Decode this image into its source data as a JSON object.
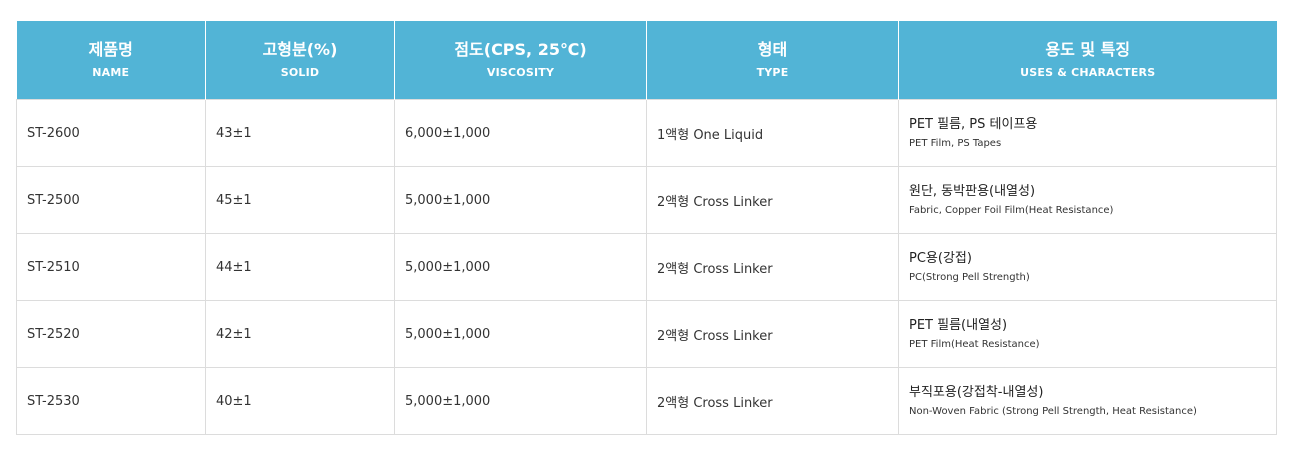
{
  "table": {
    "headers": [
      {
        "ko": "제품명",
        "en": "NAME"
      },
      {
        "ko": "고형분(%)",
        "en": "SOLID"
      },
      {
        "ko": "점도(CPS, 25℃)",
        "en": "VISCOSITY"
      },
      {
        "ko": "형태",
        "en": "TYPE"
      },
      {
        "ko": "용도 및 특징",
        "en": "USES & CHARACTERS"
      }
    ],
    "rows": [
      {
        "name": "ST-2600",
        "solid": "43±1",
        "viscosity": "6,000±1,000",
        "type": "1액형 One Liquid",
        "use_ko": "PET 필름, PS 테이프용",
        "use_en": "PET Film, PS Tapes"
      },
      {
        "name": "ST-2500",
        "solid": "45±1",
        "viscosity": "5,000±1,000",
        "type": "2액형 Cross Linker",
        "use_ko": "원단, 동박판용(내열성)",
        "use_en": "Fabric, Copper Foil Film(Heat Resistance)"
      },
      {
        "name": "ST-2510",
        "solid": "44±1",
        "viscosity": "5,000±1,000",
        "type": "2액형 Cross Linker",
        "use_ko": "PC용(강접)",
        "use_en": "PC(Strong Pell Strength)"
      },
      {
        "name": "ST-2520",
        "solid": "42±1",
        "viscosity": "5,000±1,000",
        "type": "2액형 Cross Linker",
        "use_ko": "PET 필름(내열성)",
        "use_en": "PET Film(Heat Resistance)"
      },
      {
        "name": "ST-2530",
        "solid": "40±1",
        "viscosity": "5,000±1,000",
        "type": "2액형 Cross Linker",
        "use_ko": "부직포용(강접착-내열성)",
        "use_en": "Non-Woven Fabric (Strong Pell Strength, Heat Resistance)"
      }
    ]
  },
  "colors": {
    "header_bg": "#52b4d6",
    "header_text": "#ffffff",
    "border": "#dcdcdc"
  }
}
